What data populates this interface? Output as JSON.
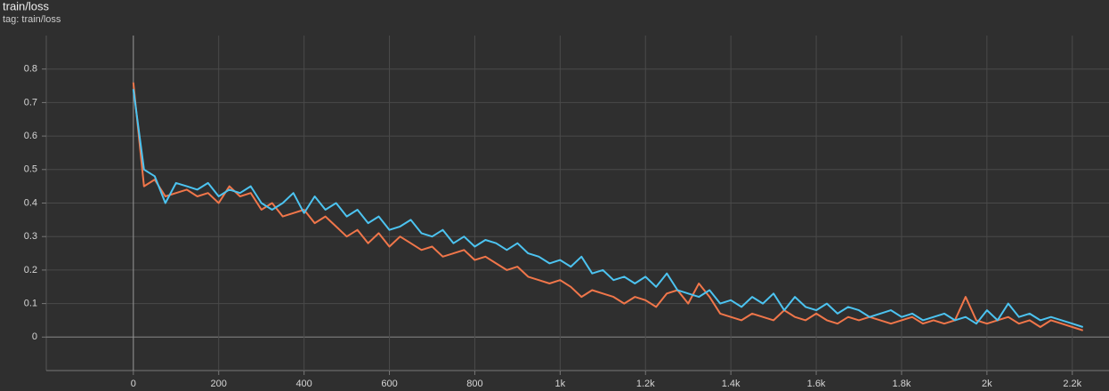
{
  "chart_data": {
    "type": "line",
    "title": "train/loss",
    "subtitle": "tag: train/loss",
    "x": [
      0,
      25,
      50,
      75,
      100,
      125,
      150,
      175,
      200,
      225,
      250,
      275,
      300,
      325,
      350,
      375,
      400,
      425,
      450,
      475,
      500,
      525,
      550,
      575,
      600,
      625,
      650,
      675,
      700,
      725,
      750,
      775,
      800,
      825,
      850,
      875,
      900,
      925,
      950,
      975,
      1000,
      1025,
      1050,
      1075,
      1100,
      1125,
      1150,
      1175,
      1200,
      1225,
      1250,
      1275,
      1300,
      1325,
      1350,
      1375,
      1400,
      1425,
      1450,
      1475,
      1500,
      1525,
      1550,
      1575,
      1600,
      1625,
      1650,
      1675,
      1700,
      1725,
      1750,
      1775,
      1800,
      1825,
      1850,
      1875,
      1900,
      1925,
      1950,
      1975,
      2000,
      2025,
      2050,
      2075,
      2100,
      2125,
      2150,
      2175,
      2200,
      2225
    ],
    "series": [
      {
        "color": "#f0764a",
        "values": [
          0.76,
          0.45,
          0.47,
          0.42,
          0.43,
          0.44,
          0.42,
          0.43,
          0.4,
          0.45,
          0.42,
          0.43,
          0.38,
          0.4,
          0.36,
          0.37,
          0.38,
          0.34,
          0.36,
          0.33,
          0.3,
          0.32,
          0.28,
          0.31,
          0.27,
          0.3,
          0.28,
          0.26,
          0.27,
          0.24,
          0.25,
          0.26,
          0.23,
          0.24,
          0.22,
          0.2,
          0.21,
          0.18,
          0.17,
          0.16,
          0.17,
          0.15,
          0.12,
          0.14,
          0.13,
          0.12,
          0.1,
          0.12,
          0.11,
          0.09,
          0.13,
          0.14,
          0.1,
          0.16,
          0.12,
          0.07,
          0.06,
          0.05,
          0.07,
          0.06,
          0.05,
          0.08,
          0.06,
          0.05,
          0.07,
          0.05,
          0.04,
          0.06,
          0.05,
          0.06,
          0.05,
          0.04,
          0.05,
          0.06,
          0.04,
          0.05,
          0.04,
          0.05,
          0.12,
          0.05,
          0.04,
          0.05,
          0.06,
          0.04,
          0.05,
          0.03,
          0.05,
          0.04,
          0.03,
          0.02
        ]
      },
      {
        "color": "#4cc3f0",
        "values": [
          0.74,
          0.5,
          0.48,
          0.4,
          0.46,
          0.45,
          0.44,
          0.46,
          0.42,
          0.44,
          0.43,
          0.45,
          0.4,
          0.38,
          0.4,
          0.43,
          0.37,
          0.42,
          0.38,
          0.4,
          0.36,
          0.38,
          0.34,
          0.36,
          0.32,
          0.33,
          0.35,
          0.31,
          0.3,
          0.32,
          0.28,
          0.3,
          0.27,
          0.29,
          0.28,
          0.26,
          0.28,
          0.25,
          0.24,
          0.22,
          0.23,
          0.21,
          0.24,
          0.19,
          0.2,
          0.17,
          0.18,
          0.16,
          0.18,
          0.15,
          0.19,
          0.14,
          0.13,
          0.12,
          0.14,
          0.1,
          0.11,
          0.09,
          0.12,
          0.1,
          0.13,
          0.08,
          0.12,
          0.09,
          0.08,
          0.1,
          0.07,
          0.09,
          0.08,
          0.06,
          0.07,
          0.08,
          0.06,
          0.07,
          0.05,
          0.06,
          0.07,
          0.05,
          0.06,
          0.04,
          0.08,
          0.05,
          0.1,
          0.06,
          0.07,
          0.05,
          0.06,
          0.05,
          0.04,
          0.03
        ]
      }
    ],
    "xlim": [
      -204,
      2286
    ],
    "xticks": [
      0,
      200,
      400,
      600,
      800,
      {
        "value": 1000,
        "label": "1k"
      },
      {
        "value": 1200,
        "label": "1.2k"
      },
      {
        "value": 1400,
        "label": "1.4k"
      },
      {
        "value": 1600,
        "label": "1.6k"
      },
      {
        "value": 1800,
        "label": "1.8k"
      },
      {
        "value": 2000,
        "label": "2k"
      },
      {
        "value": 2200,
        "label": "2.2k"
      }
    ],
    "ylim": [
      -0.1,
      0.9
    ],
    "yticks": [
      0,
      0.1,
      0.2,
      0.3,
      0.4,
      0.5,
      0.6,
      0.7,
      0.8
    ],
    "grid": true
  }
}
